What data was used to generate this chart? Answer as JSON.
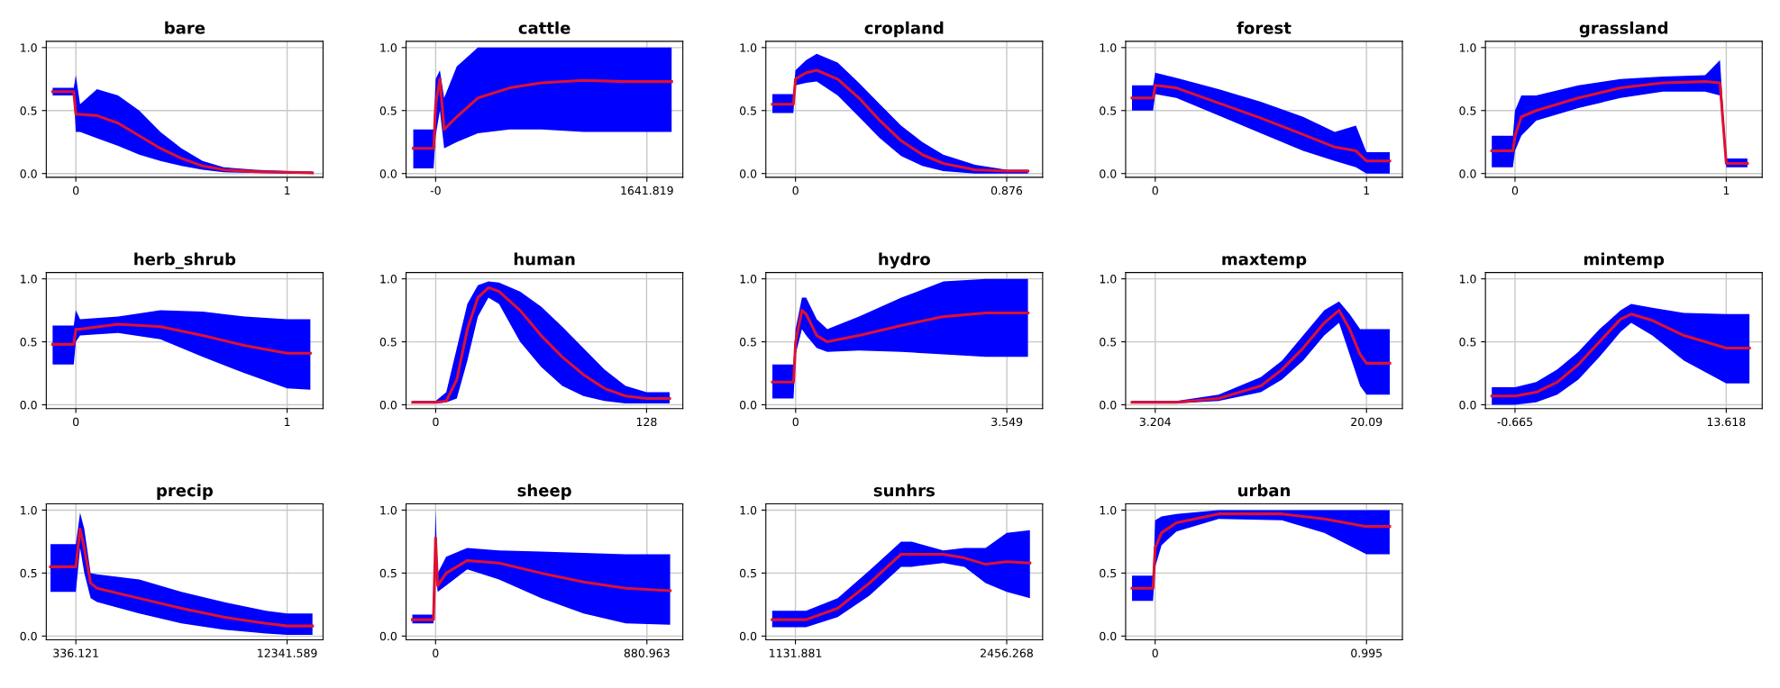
{
  "chart_data": [
    {
      "type": "line",
      "title": "bare",
      "x": [
        -0.11,
        -0.01,
        0,
        0.02,
        0.1,
        0.2,
        0.3,
        0.4,
        0.5,
        0.6,
        0.7,
        0.85,
        1.0,
        1.12
      ],
      "xlim": [
        -0.14,
        1.17
      ],
      "xticks": [
        0,
        1
      ],
      "ylim": [
        -0.03,
        1.05
      ],
      "yticks": [
        {
          "value": 0,
          "label": "0.0"
        },
        {
          "value": 0.5,
          "label": "0.5"
        },
        {
          "value": 1,
          "label": "1.0"
        }
      ],
      "grid": true,
      "series": [
        {
          "color": "#dd1133",
          "values": [
            0.65,
            0.65,
            0.47,
            0.47,
            0.46,
            0.4,
            0.3,
            0.2,
            0.12,
            0.06,
            0.03,
            0.015,
            0.01,
            0.005
          ],
          "lower": [
            0.62,
            0.62,
            0.33,
            0.33,
            0.28,
            0.22,
            0.15,
            0.1,
            0.06,
            0.03,
            0.01,
            0.005,
            0.0,
            0.0
          ],
          "upper": [
            0.68,
            0.68,
            0.78,
            0.55,
            0.67,
            0.62,
            0.5,
            0.33,
            0.2,
            0.1,
            0.05,
            0.03,
            0.02,
            0.015
          ]
        }
      ]
    },
    {
      "type": "line",
      "title": "cattle",
      "x": [
        -174,
        -16,
        0,
        33,
        66,
        164,
        328,
        575,
        821,
        1149,
        1478,
        1834
      ],
      "xlim": [
        -230,
        1921
      ],
      "xticks": [
        {
          "value": 0,
          "label": "-0"
        },
        1641.819
      ],
      "ylim": [
        -0.03,
        1.05
      ],
      "yticks": [
        {
          "value": 0,
          "label": "0.0"
        },
        {
          "value": 0.5,
          "label": "0.5"
        },
        {
          "value": 1,
          "label": "1.0"
        }
      ],
      "grid": true,
      "series": [
        {
          "color": "#dd1133",
          "values": [
            0.2,
            0.2,
            0.55,
            0.75,
            0.35,
            0.45,
            0.6,
            0.68,
            0.72,
            0.74,
            0.73,
            0.73
          ],
          "lower": [
            0.04,
            0.04,
            0.3,
            0.5,
            0.2,
            0.25,
            0.32,
            0.35,
            0.35,
            0.33,
            0.33,
            0.33
          ],
          "upper": [
            0.35,
            0.35,
            0.75,
            0.82,
            0.6,
            0.85,
            1.0,
            1.0,
            1.0,
            1.0,
            1.0,
            1.0
          ]
        }
      ]
    },
    {
      "type": "line",
      "title": "cropland",
      "x": [
        -0.096,
        -0.009,
        0,
        0.044,
        0.088,
        0.175,
        0.263,
        0.35,
        0.438,
        0.526,
        0.613,
        0.745,
        0.876,
        0.964
      ],
      "xlim": [
        -0.123,
        1.025
      ],
      "xticks": [
        0,
        0.876
      ],
      "ylim": [
        -0.03,
        1.05
      ],
      "yticks": [
        {
          "value": 0,
          "label": "0.0"
        },
        {
          "value": 0.5,
          "label": "0.5"
        },
        {
          "value": 1,
          "label": "1.0"
        }
      ],
      "grid": true,
      "series": [
        {
          "color": "#dd1133",
          "values": [
            0.55,
            0.55,
            0.75,
            0.8,
            0.82,
            0.75,
            0.6,
            0.42,
            0.26,
            0.15,
            0.08,
            0.03,
            0.02,
            0.02
          ],
          "lower": [
            0.48,
            0.48,
            0.7,
            0.72,
            0.73,
            0.62,
            0.45,
            0.28,
            0.14,
            0.06,
            0.02,
            0.0,
            0.0,
            0.0
          ],
          "upper": [
            0.63,
            0.63,
            0.82,
            0.9,
            0.95,
            0.88,
            0.72,
            0.55,
            0.38,
            0.25,
            0.15,
            0.07,
            0.03,
            0.03
          ]
        }
      ]
    },
    {
      "type": "line",
      "title": "forest",
      "x": [
        -0.11,
        -0.01,
        0,
        0.1,
        0.3,
        0.5,
        0.7,
        0.85,
        0.95,
        1.0,
        1.11
      ],
      "xlim": [
        -0.14,
        1.17
      ],
      "xticks": [
        0,
        1
      ],
      "ylim": [
        -0.03,
        1.05
      ],
      "yticks": [
        {
          "value": 0,
          "label": "0.0"
        },
        {
          "value": 0.5,
          "label": "0.5"
        },
        {
          "value": 1,
          "label": "1.0"
        }
      ],
      "grid": true,
      "series": [
        {
          "color": "#dd1133",
          "values": [
            0.6,
            0.6,
            0.7,
            0.68,
            0.56,
            0.44,
            0.31,
            0.21,
            0.18,
            0.1,
            0.1
          ],
          "lower": [
            0.5,
            0.5,
            0.63,
            0.6,
            0.46,
            0.32,
            0.18,
            0.1,
            0.05,
            0.0,
            0.0
          ],
          "upper": [
            0.7,
            0.7,
            0.8,
            0.76,
            0.67,
            0.57,
            0.45,
            0.33,
            0.38,
            0.17,
            0.17
          ]
        }
      ]
    },
    {
      "type": "line",
      "title": "grassland",
      "x": [
        -0.11,
        -0.01,
        0,
        0.03,
        0.1,
        0.3,
        0.5,
        0.7,
        0.9,
        0.97,
        1.0,
        1.1
      ],
      "xlim": [
        -0.14,
        1.17
      ],
      "xticks": [
        0,
        1
      ],
      "ylim": [
        -0.03,
        1.05
      ],
      "yticks": [
        {
          "value": 0,
          "label": "0.0"
        },
        {
          "value": 0.5,
          "label": "0.5"
        },
        {
          "value": 1,
          "label": "1.0"
        }
      ],
      "grid": true,
      "series": [
        {
          "color": "#dd1133",
          "values": [
            0.18,
            0.18,
            0.3,
            0.45,
            0.5,
            0.6,
            0.68,
            0.72,
            0.73,
            0.72,
            0.08,
            0.08
          ],
          "lower": [
            0.05,
            0.05,
            0.18,
            0.3,
            0.42,
            0.52,
            0.6,
            0.65,
            0.65,
            0.62,
            0.05,
            0.05
          ],
          "upper": [
            0.3,
            0.3,
            0.5,
            0.62,
            0.62,
            0.7,
            0.75,
            0.77,
            0.78,
            0.9,
            0.12,
            0.12
          ]
        }
      ]
    },
    {
      "type": "line",
      "title": "herb_shrub",
      "x": [
        -0.11,
        -0.01,
        0,
        0.02,
        0.2,
        0.4,
        0.6,
        0.8,
        1.0,
        1.11
      ],
      "xlim": [
        -0.14,
        1.17
      ],
      "xticks": [
        0,
        1
      ],
      "ylim": [
        -0.03,
        1.05
      ],
      "yticks": [
        {
          "value": 0,
          "label": "0.0"
        },
        {
          "value": 0.5,
          "label": "0.5"
        },
        {
          "value": 1,
          "label": "1.0"
        }
      ],
      "grid": true,
      "series": [
        {
          "color": "#dd1133",
          "values": [
            0.48,
            0.48,
            0.6,
            0.6,
            0.64,
            0.62,
            0.55,
            0.47,
            0.41,
            0.41
          ],
          "lower": [
            0.32,
            0.32,
            0.5,
            0.55,
            0.57,
            0.52,
            0.38,
            0.25,
            0.13,
            0.12
          ],
          "upper": [
            0.63,
            0.63,
            0.75,
            0.68,
            0.7,
            0.75,
            0.74,
            0.7,
            0.68,
            0.68
          ]
        }
      ]
    },
    {
      "type": "line",
      "title": "human",
      "x": [
        -14,
        0,
        6.4,
        12.8,
        19.2,
        25.6,
        32,
        38.4,
        51.2,
        64,
        76.8,
        89.6,
        102.4,
        115.2,
        128,
        142
      ],
      "xlim": [
        -18,
        150
      ],
      "xticks": [
        0,
        128
      ],
      "ylim": [
        -0.03,
        1.05
      ],
      "yticks": [
        {
          "value": 0,
          "label": "0.0"
        },
        {
          "value": 0.5,
          "label": "0.5"
        },
        {
          "value": 1,
          "label": "1.0"
        }
      ],
      "grid": true,
      "series": [
        {
          "color": "#dd1133",
          "values": [
            0.02,
            0.02,
            0.03,
            0.2,
            0.6,
            0.85,
            0.93,
            0.9,
            0.75,
            0.55,
            0.38,
            0.24,
            0.13,
            0.07,
            0.05,
            0.05
          ],
          "lower": [
            0.01,
            0.01,
            0.02,
            0.05,
            0.35,
            0.7,
            0.85,
            0.8,
            0.5,
            0.3,
            0.15,
            0.07,
            0.03,
            0.01,
            0.01,
            0.01
          ],
          "upper": [
            0.03,
            0.03,
            0.1,
            0.45,
            0.8,
            0.95,
            0.98,
            0.97,
            0.9,
            0.78,
            0.62,
            0.45,
            0.28,
            0.15,
            0.1,
            0.1
          ]
        }
      ]
    },
    {
      "type": "line",
      "title": "hydro",
      "x": [
        -0.39,
        -0.035,
        0,
        0.106,
        0.177,
        0.355,
        0.532,
        1.065,
        1.775,
        2.484,
        3.194,
        3.904
      ],
      "xlim": [
        -0.5,
        4.15
      ],
      "xticks": [
        0,
        3.549
      ],
      "ylim": [
        -0.03,
        1.05
      ],
      "yticks": [
        {
          "value": 0,
          "label": "0.0"
        },
        {
          "value": 0.5,
          "label": "0.5"
        },
        {
          "value": 1,
          "label": "1.0"
        }
      ],
      "grid": true,
      "series": [
        {
          "color": "#dd1133",
          "values": [
            0.18,
            0.18,
            0.5,
            0.75,
            0.72,
            0.55,
            0.5,
            0.55,
            0.63,
            0.7,
            0.73,
            0.73
          ],
          "lower": [
            0.05,
            0.05,
            0.4,
            0.6,
            0.55,
            0.45,
            0.42,
            0.43,
            0.42,
            0.4,
            0.38,
            0.38
          ],
          "upper": [
            0.32,
            0.32,
            0.6,
            0.85,
            0.85,
            0.68,
            0.6,
            0.7,
            0.85,
            0.98,
            1.0,
            1.0
          ]
        }
      ]
    },
    {
      "type": "line",
      "title": "maxtemp",
      "x": [
        1.347,
        4.893,
        8.27,
        11.647,
        13.336,
        15.024,
        16.713,
        17.895,
        18.739,
        19.583,
        20.09,
        21.947
      ],
      "xlim": [
        0.84,
        22.96
      ],
      "xticks": [
        3.204,
        20.09
      ],
      "ylim": [
        -0.03,
        1.05
      ],
      "yticks": [
        {
          "value": 0,
          "label": "0.0"
        },
        {
          "value": 0.5,
          "label": "0.5"
        },
        {
          "value": 1,
          "label": "1.0"
        }
      ],
      "grid": true,
      "series": [
        {
          "color": "#dd1133",
          "values": [
            0.02,
            0.02,
            0.05,
            0.15,
            0.28,
            0.45,
            0.65,
            0.75,
            0.6,
            0.4,
            0.33,
            0.33
          ],
          "lower": [
            0.01,
            0.01,
            0.03,
            0.1,
            0.2,
            0.35,
            0.55,
            0.65,
            0.4,
            0.15,
            0.08,
            0.08
          ],
          "upper": [
            0.03,
            0.03,
            0.08,
            0.22,
            0.35,
            0.55,
            0.75,
            0.82,
            0.72,
            0.6,
            0.6,
            0.6
          ]
        }
      ]
    },
    {
      "type": "line",
      "title": "mintemp",
      "x": [
        -2.236,
        -0.665,
        0.763,
        2.192,
        3.62,
        5.048,
        6.477,
        7.191,
        8.619,
        10.761,
        13.618,
        15.189
      ],
      "xlim": [
        -2.665,
        16.05
      ],
      "xticks": [
        -0.665,
        13.618
      ],
      "ylim": [
        -0.03,
        1.05
      ],
      "yticks": [
        {
          "value": 0,
          "label": "0.0"
        },
        {
          "value": 0.5,
          "label": "0.5"
        },
        {
          "value": 1,
          "label": "1.0"
        }
      ],
      "grid": true,
      "series": [
        {
          "color": "#dd1133",
          "values": [
            0.07,
            0.07,
            0.1,
            0.18,
            0.32,
            0.5,
            0.68,
            0.72,
            0.67,
            0.55,
            0.45,
            0.45
          ],
          "lower": [
            0.0,
            0.0,
            0.02,
            0.08,
            0.2,
            0.38,
            0.58,
            0.65,
            0.55,
            0.35,
            0.17,
            0.17
          ],
          "upper": [
            0.14,
            0.14,
            0.18,
            0.28,
            0.42,
            0.6,
            0.75,
            0.8,
            0.77,
            0.73,
            0.72,
            0.72
          ]
        }
      ]
    },
    {
      "type": "line",
      "title": "precip",
      "x": [
        -1104.5,
        216.1,
        336.121,
        576.2,
        816.3,
        1176.5,
        1536.7,
        3937.8,
        6338.9,
        8740.0,
        11141.0,
        12341.589,
        13782.2
      ],
      "xlim": [
        -1345,
        14382
      ],
      "xticks": [
        336.121,
        12341.589
      ],
      "ylim": [
        -0.03,
        1.05
      ],
      "yticks": [
        {
          "value": 0,
          "label": "0.0"
        },
        {
          "value": 0.5,
          "label": "0.5"
        },
        {
          "value": 1,
          "label": "1.0"
        }
      ],
      "grid": true,
      "series": [
        {
          "color": "#dd1133",
          "values": [
            0.55,
            0.55,
            0.55,
            0.85,
            0.7,
            0.42,
            0.38,
            0.3,
            0.22,
            0.15,
            0.1,
            0.08,
            0.08
          ],
          "lower": [
            0.35,
            0.35,
            0.35,
            0.7,
            0.5,
            0.3,
            0.27,
            0.18,
            0.1,
            0.05,
            0.02,
            0.01,
            0.01
          ],
          "upper": [
            0.73,
            0.73,
            0.73,
            0.98,
            0.85,
            0.5,
            0.49,
            0.45,
            0.35,
            0.27,
            0.2,
            0.18,
            0.18
          ]
        }
      ]
    },
    {
      "type": "line",
      "title": "sheep",
      "x": [
        -96.9,
        -8.8,
        0,
        8.8,
        44.0,
        132.1,
        264.3,
        440.5,
        616.7,
        792.9,
        977.9
      ],
      "xlim": [
        -123,
        1030.7
      ],
      "xticks": [
        0,
        880.963
      ],
      "ylim": [
        -0.03,
        1.05
      ],
      "yticks": [
        {
          "value": 0,
          "label": "0.0"
        },
        {
          "value": 0.5,
          "label": "0.5"
        },
        {
          "value": 1,
          "label": "1.0"
        }
      ],
      "grid": true,
      "series": [
        {
          "color": "#dd1133",
          "values": [
            0.13,
            0.13,
            0.78,
            0.4,
            0.5,
            0.6,
            0.58,
            0.5,
            0.43,
            0.38,
            0.36
          ],
          "lower": [
            0.1,
            0.1,
            0.5,
            0.35,
            0.4,
            0.53,
            0.45,
            0.3,
            0.18,
            0.1,
            0.09
          ],
          "upper": [
            0.17,
            0.17,
            1.0,
            0.5,
            0.63,
            0.7,
            0.68,
            0.67,
            0.66,
            0.65,
            0.65
          ]
        }
      ]
    },
    {
      "type": "line",
      "title": "sunhrs",
      "x": [
        986.2,
        1198.1,
        1396.8,
        1595.4,
        1794.1,
        1860.3,
        2058.9,
        2191.4,
        2323.8,
        2456.268,
        2601.9
      ],
      "xlim": [
        946.5,
        2681.4
      ],
      "xticks": [
        1131.881,
        2456.268
      ],
      "ylim": [
        -0.03,
        1.05
      ],
      "yticks": [
        {
          "value": 0,
          "label": "0.0"
        },
        {
          "value": 0.5,
          "label": "0.5"
        },
        {
          "value": 1,
          "label": "1.0"
        }
      ],
      "grid": true,
      "series": [
        {
          "color": "#dd1133",
          "values": [
            0.13,
            0.13,
            0.22,
            0.42,
            0.65,
            0.65,
            0.65,
            0.62,
            0.57,
            0.59,
            0.58
          ],
          "lower": [
            0.07,
            0.07,
            0.15,
            0.32,
            0.55,
            0.55,
            0.58,
            0.55,
            0.42,
            0.35,
            0.3
          ],
          "upper": [
            0.2,
            0.2,
            0.3,
            0.52,
            0.75,
            0.75,
            0.68,
            0.7,
            0.7,
            0.82,
            0.84
          ]
        }
      ]
    },
    {
      "type": "line",
      "title": "urban",
      "x": [
        -0.109,
        -0.01,
        0,
        0.03,
        0.1,
        0.299,
        0.597,
        0.796,
        0.995,
        1.104
      ],
      "xlim": [
        -0.139,
        1.164
      ],
      "xticks": [
        0,
        0.995
      ],
      "ylim": [
        -0.03,
        1.05
      ],
      "yticks": [
        {
          "value": 0,
          "label": "0.0"
        },
        {
          "value": 0.5,
          "label": "0.5"
        },
        {
          "value": 1,
          "label": "1.0"
        }
      ],
      "grid": true,
      "series": [
        {
          "color": "#dd1133",
          "values": [
            0.38,
            0.38,
            0.7,
            0.82,
            0.9,
            0.97,
            0.97,
            0.93,
            0.87,
            0.87
          ],
          "lower": [
            0.28,
            0.28,
            0.55,
            0.72,
            0.83,
            0.93,
            0.92,
            0.82,
            0.65,
            0.65
          ],
          "upper": [
            0.48,
            0.48,
            0.92,
            0.95,
            0.97,
            1.0,
            1.0,
            1.0,
            1.0,
            1.0
          ]
        }
      ]
    }
  ]
}
